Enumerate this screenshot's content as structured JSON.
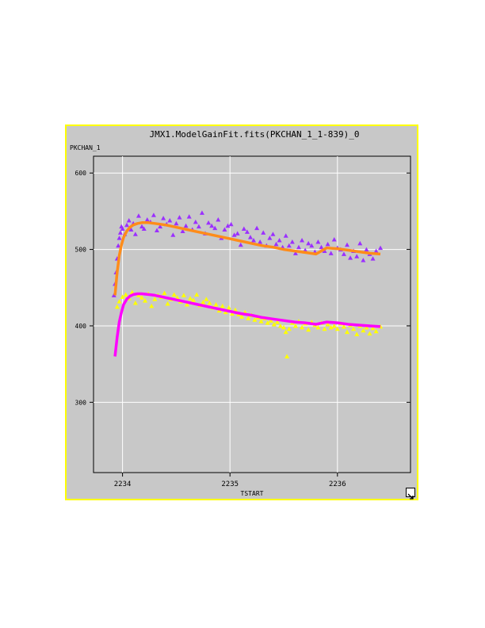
{
  "window": {
    "title": "JMX1.ModelGainFit.fits(PKCHAN_1_1-839)_0"
  },
  "colors": {
    "background": "#c8c8c8",
    "border": "#ffff00",
    "purple_points": "#9b30ff",
    "yellow_points": "#ffff00",
    "orange_fit": "#ff8c1a",
    "magenta_fit": "#ff00ff",
    "grid": "#ffffff"
  },
  "icons": {
    "resize": "resize-corner-icon"
  },
  "chart_data": {
    "type": "scatter",
    "title": "JMX1.ModelGainFit.fits(PKCHAN_1_1-839)_0",
    "xlabel": "TSTART",
    "ylabel": "PKCHAN_1",
    "xlim": [
      2233.73,
      2236.68
    ],
    "ylim": [
      208,
      622
    ],
    "xticks": [
      2234,
      2235,
      2236
    ],
    "yticks": [
      300,
      400,
      500,
      600
    ],
    "xtick_labels": [
      "2234",
      "2235",
      "2236"
    ],
    "ytick_labels": [
      "300",
      "400",
      "500",
      "600"
    ],
    "grid": true,
    "series": [
      {
        "kind": "points",
        "marker": "triangle",
        "color": "#9b30ff",
        "x": [
          2233.92,
          2233.93,
          2233.94,
          2233.95,
          2233.96,
          2233.97,
          2233.98,
          2233.99,
          2234.0,
          2234.02,
          2234.04,
          2234.06,
          2234.08,
          2234.1,
          2234.12,
          2234.15,
          2234.18,
          2234.2,
          2234.23,
          2234.26,
          2234.29,
          2234.32,
          2234.35,
          2234.38,
          2234.41,
          2234.44,
          2234.47,
          2234.5,
          2234.53,
          2234.56,
          2234.59,
          2234.62,
          2234.65,
          2234.68,
          2234.71,
          2234.74,
          2234.77,
          2234.8,
          2234.83,
          2234.86,
          2234.89,
          2234.92,
          2234.95,
          2234.98,
          2235.01,
          2235.04,
          2235.07,
          2235.1,
          2235.13,
          2235.16,
          2235.19,
          2235.22,
          2235.25,
          2235.28,
          2235.31,
          2235.34,
          2235.37,
          2235.4,
          2235.43,
          2235.46,
          2235.49,
          2235.52,
          2235.55,
          2235.58,
          2235.61,
          2235.64,
          2235.67,
          2235.7,
          2235.73,
          2235.76,
          2235.79,
          2235.82,
          2235.85,
          2235.88,
          2235.91,
          2235.94,
          2235.97,
          2236.0,
          2236.03,
          2236.06,
          2236.09,
          2236.12,
          2236.15,
          2236.18,
          2236.21,
          2236.24,
          2236.27,
          2236.3,
          2236.33,
          2236.36,
          2236.4
        ],
        "y": [
          440,
          455,
          470,
          488,
          505,
          515,
          522,
          530,
          527,
          520,
          532,
          538,
          526,
          534,
          520,
          544,
          530,
          527,
          539,
          536,
          545,
          525,
          530,
          541,
          533,
          538,
          519,
          534,
          542,
          524,
          531,
          543,
          526,
          536,
          530,
          548,
          521,
          535,
          531,
          528,
          539,
          515,
          526,
          531,
          533,
          519,
          521,
          506,
          527,
          523,
          516,
          512,
          528,
          510,
          522,
          505,
          515,
          520,
          507,
          512,
          503,
          518,
          505,
          510,
          495,
          503,
          512,
          499,
          508,
          505,
          497,
          510,
          503,
          498,
          507,
          495,
          513,
          502,
          500,
          494,
          506,
          489,
          498,
          491,
          508,
          486,
          500,
          494,
          488,
          498,
          502
        ]
      },
      {
        "kind": "points",
        "marker": "triangle",
        "color": "#ffff00",
        "x": [
          2233.95,
          2233.97,
          2234.0,
          2234.03,
          2234.06,
          2234.09,
          2234.12,
          2234.15,
          2234.18,
          2234.21,
          2234.24,
          2234.27,
          2234.3,
          2234.33,
          2234.36,
          2234.39,
          2234.42,
          2234.45,
          2234.48,
          2234.51,
          2234.54,
          2234.57,
          2234.6,
          2234.63,
          2234.66,
          2234.69,
          2234.72,
          2234.75,
          2234.78,
          2234.81,
          2234.84,
          2234.87,
          2234.9,
          2234.93,
          2234.96,
          2234.99,
          2235.02,
          2235.05,
          2235.08,
          2235.11,
          2235.14,
          2235.17,
          2235.2,
          2235.23,
          2235.26,
          2235.29,
          2235.32,
          2235.35,
          2235.38,
          2235.41,
          2235.44,
          2235.47,
          2235.5,
          2235.52,
          2235.53,
          2235.55,
          2235.58,
          2235.61,
          2235.64,
          2235.67,
          2235.7,
          2235.73,
          2235.76,
          2235.79,
          2235.82,
          2235.85,
          2235.88,
          2235.91,
          2235.94,
          2235.97,
          2236.0,
          2236.03,
          2236.06,
          2236.09,
          2236.12,
          2236.15,
          2236.18,
          2236.21,
          2236.24,
          2236.27,
          2236.3,
          2236.33,
          2236.36,
          2236.4
        ],
        "y": [
          425,
          432,
          438,
          441,
          436,
          444,
          430,
          440,
          437,
          433,
          442,
          426,
          435,
          440,
          438,
          443,
          429,
          435,
          441,
          437,
          432,
          440,
          428,
          436,
          434,
          441,
          427,
          431,
          435,
          430,
          424,
          428,
          420,
          426,
          418,
          424,
          416,
          421,
          415,
          412,
          418,
          410,
          414,
          408,
          411,
          406,
          410,
          404,
          407,
          402,
          405,
          400,
          398,
          392,
          360,
          396,
          404,
          400,
          406,
          398,
          403,
          395,
          405,
          401,
          398,
          404,
          396,
          402,
          398,
          400,
          396,
          403,
          399,
          392,
          401,
          396,
          389,
          400,
          394,
          398,
          390,
          397,
          393,
          399
        ]
      },
      {
        "kind": "fit-curve",
        "marker": "line",
        "color": "#ff8c1a",
        "x": [
          2233.93,
          2233.95,
          2233.97,
          2233.99,
          2234.01,
          2234.04,
          2234.07,
          2234.1,
          2234.14,
          2234.18,
          2234.24,
          2234.3,
          2234.4,
          2234.5,
          2234.6,
          2234.7,
          2234.8,
          2234.9,
          2235.0,
          2235.1,
          2235.2,
          2235.3,
          2235.4,
          2235.5,
          2235.6,
          2235.7,
          2235.8,
          2235.9,
          2236.0,
          2236.1,
          2236.2,
          2236.3,
          2236.4
        ],
        "y": [
          440,
          470,
          492,
          506,
          516,
          524,
          529,
          532,
          534,
          535,
          535,
          534,
          532,
          529,
          526,
          523,
          520,
          517,
          514,
          511,
          508,
          505,
          503,
          500,
          498,
          496,
          494,
          502,
          501,
          499,
          497,
          495,
          494
        ]
      },
      {
        "kind": "fit-curve",
        "marker": "line",
        "color": "#ff00ff",
        "x": [
          2233.93,
          2233.95,
          2233.97,
          2233.99,
          2234.01,
          2234.04,
          2234.07,
          2234.1,
          2234.14,
          2234.18,
          2234.24,
          2234.3,
          2234.4,
          2234.5,
          2234.6,
          2234.7,
          2234.8,
          2234.9,
          2235.0,
          2235.1,
          2235.2,
          2235.3,
          2235.4,
          2235.5,
          2235.6,
          2235.7,
          2235.8,
          2235.9,
          2236.0,
          2236.1,
          2236.2,
          2236.3,
          2236.4
        ],
        "y": [
          360,
          385,
          405,
          418,
          428,
          435,
          439,
          441,
          442,
          442,
          441,
          440,
          437,
          434,
          431,
          428,
          425,
          422,
          419,
          416,
          414,
          411,
          409,
          407,
          405,
          404,
          402,
          405,
          404,
          402,
          401,
          400,
          399
        ]
      }
    ]
  }
}
